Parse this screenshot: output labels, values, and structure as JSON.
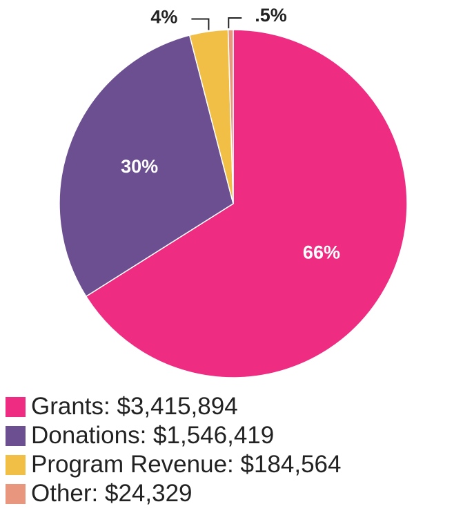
{
  "chart_data": {
    "type": "pie",
    "slices": [
      {
        "label": "Grants",
        "value": 3415894,
        "value_label": "$3,415,894",
        "percent_label": "66%",
        "color": "#ee2d82",
        "label_position": "inside"
      },
      {
        "label": "Donations",
        "value": 1546419,
        "value_label": "$1,546,419",
        "percent_label": "30%",
        "color": "#6b4f90",
        "label_position": "inside"
      },
      {
        "label": "Program Revenue",
        "value": 184564,
        "value_label": "$184,564",
        "percent_label": "4%",
        "color": "#f1bf45",
        "label_position": "outside-left"
      },
      {
        "label": "Other",
        "value": 24329,
        "value_label": "$24,329",
        "percent_label": ".5%",
        "color": "#e8967d",
        "label_position": "outside-right"
      }
    ],
    "start_angle": "12 o'clock",
    "direction": "clockwise",
    "legend_placement": "bottom"
  },
  "legend": {
    "items": [
      {
        "text": "Grants:  $3,415,894"
      },
      {
        "text": "Donations:  $1,546,419"
      },
      {
        "text": "Program Revenue:  $184,564"
      },
      {
        "text": "Other:  $24,329"
      }
    ]
  }
}
